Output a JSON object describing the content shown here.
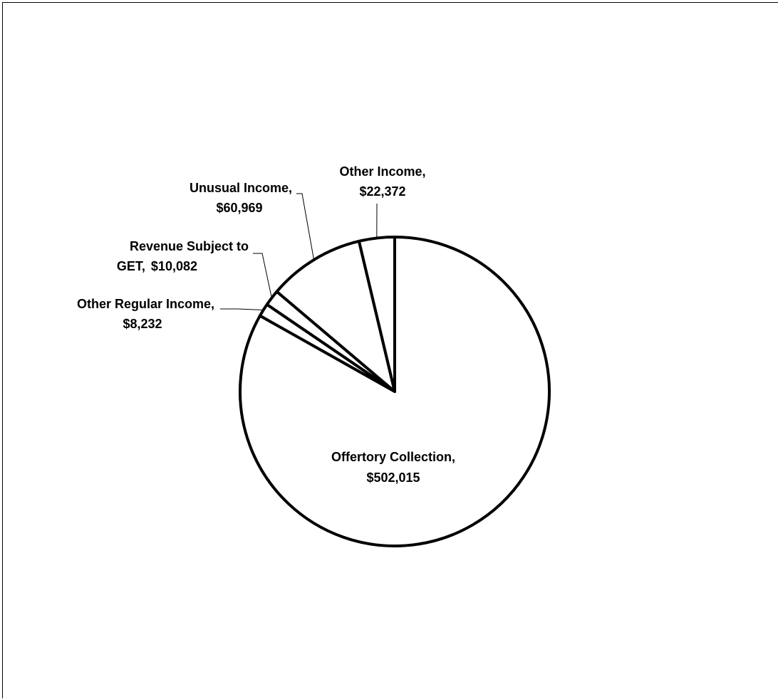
{
  "chart_data": {
    "type": "pie",
    "title": "",
    "colors": {
      "fill": "#ffffff",
      "stroke": "#000000"
    },
    "slices": [
      {
        "name": "Offertory Collection,",
        "value": 502015,
        "value_label": "$502,015"
      },
      {
        "name": "Other Regular Income,",
        "value": 8232,
        "value_label": "$8,232"
      },
      {
        "name": "Revenue Subject to",
        "name2": "GET,",
        "value": 10082,
        "value_label": "$10,082"
      },
      {
        "name": "Unusual Income,",
        "value": 60969,
        "value_label": "$60,969"
      },
      {
        "name": "Other Income,",
        "value": 22372,
        "value_label": "$22,372"
      }
    ]
  }
}
